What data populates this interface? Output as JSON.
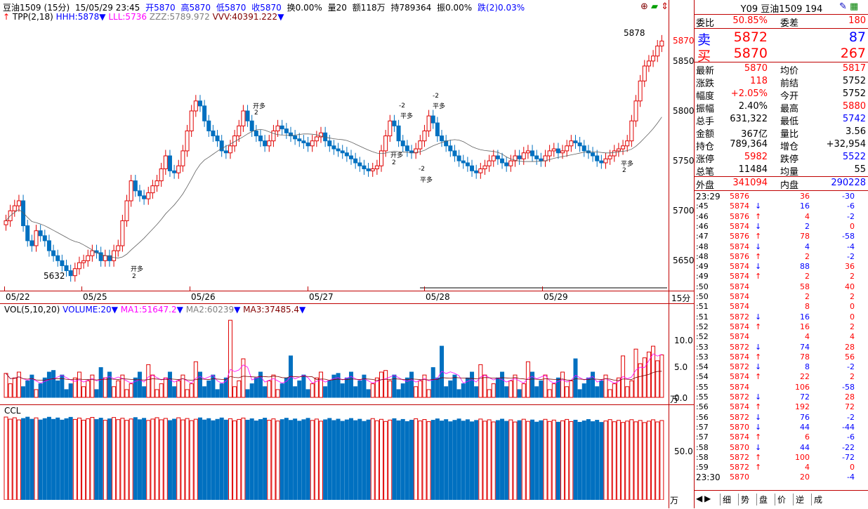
{
  "header": {
    "symbol": "豆油1509",
    "period": "(15分)",
    "datetime": "15/05/29 23:45",
    "open": "开5870",
    "high": "高5870",
    "low": "低5870",
    "close": "收5870",
    "turnover": "换0.00%",
    "volume": "量20",
    "amount": "额118万",
    "position": "持789364",
    "amplitude": "振0.00%",
    "change": "跌(2)0.03%"
  },
  "indicator": {
    "name": "TPP(2,18)",
    "hhh": "HHH:5878",
    "lll": "LLL:5736",
    "zzz": "ZZZ:5789.972",
    "vvv": "VVV:40391.222"
  },
  "vol_header": {
    "name": "VOL(5,10,20)",
    "volume": "VOLUME:20",
    "ma1": "MA1:51647.2",
    "ma2": "MA2:60239",
    "ma3": "MA3:37485.4"
  },
  "ccl_header": {
    "name": "CCL"
  },
  "price_axis": {
    "labels": [
      "5870",
      "5850",
      "5800",
      "5750",
      "5700",
      "5650"
    ],
    "period_label": "15分"
  },
  "vol_axis": {
    "labels": [
      "10.0",
      "5.0",
      "0.0"
    ],
    "unit": "万"
  },
  "ccl_axis": {
    "labels": [
      "50.0"
    ],
    "unit": "万"
  },
  "date_labels": [
    "05/22",
    "05/25",
    "05/26",
    "05/27",
    "05/28",
    "05/29"
  ],
  "annotations": {
    "high_mark": "5878",
    "low_mark": "5632",
    "signals": [
      "开多",
      "2",
      "开多",
      "2",
      "-2",
      "平多",
      "-2",
      "平多",
      "-2",
      "平多",
      "开多",
      "2",
      "平多",
      "2"
    ]
  },
  "chart_data": {
    "type": "candlestick",
    "y_range": [
      5620,
      5890
    ],
    "closes": [
      5690,
      5700,
      5705,
      5710,
      5685,
      5670,
      5665,
      5680,
      5675,
      5670,
      5660,
      5655,
      5650,
      5645,
      5640,
      5635,
      5642,
      5648,
      5650,
      5655,
      5660,
      5658,
      5650,
      5655,
      5650,
      5660,
      5665,
      5690,
      5710,
      5730,
      5720,
      5715,
      5712,
      5718,
      5725,
      5730,
      5742,
      5755,
      5740,
      5738,
      5745,
      5760,
      5780,
      5800,
      5810,
      5805,
      5790,
      5780,
      5775,
      5770,
      5760,
      5758,
      5765,
      5775,
      5785,
      5800,
      5790,
      5780,
      5775,
      5770,
      5765,
      5770,
      5780,
      5785,
      5782,
      5778,
      5775,
      5772,
      5770,
      5768,
      5765,
      5770,
      5774,
      5778,
      5770,
      5765,
      5762,
      5760,
      5758,
      5755,
      5752,
      5748,
      5745,
      5742,
      5740,
      5742,
      5745,
      5760,
      5775,
      5790,
      5785,
      5770,
      5765,
      5760,
      5758,
      5762,
      5770,
      5780,
      5795,
      5788,
      5775,
      5770,
      5765,
      5760,
      5755,
      5750,
      5748,
      5745,
      5740,
      5738,
      5742,
      5745,
      5750,
      5755,
      5752,
      5748,
      5745,
      5750,
      5755,
      5752,
      5758,
      5760,
      5755,
      5752,
      5750,
      5755,
      5760,
      5762,
      5758,
      5760,
      5765,
      5770,
      5768,
      5765,
      5760,
      5758,
      5755,
      5750,
      5748,
      5752,
      5755,
      5760,
      5762,
      5765,
      5770,
      5790,
      5810,
      5830,
      5845,
      5850,
      5855,
      5865,
      5870
    ]
  },
  "quote": {
    "header": {
      "code": "Y09",
      "name": "豆油1509",
      "num": "194"
    },
    "weibi": {
      "label": "委比",
      "value": "50.85%",
      "label2": "委差",
      "value2": "180"
    },
    "sell": {
      "label": "卖",
      "price": "5872",
      "qty": "87"
    },
    "buy": {
      "label": "买",
      "price": "5870",
      "qty": "267"
    },
    "rows": [
      {
        "l1": "最新",
        "v1": "5870",
        "c1": "#ff0000",
        "l2": "均价",
        "v2": "5817",
        "c2": "#ff0000"
      },
      {
        "l1": "涨跌",
        "v1": "118",
        "c1": "#ff0000",
        "l2": "前结",
        "v2": "5752",
        "c2": "#000000"
      },
      {
        "l1": "幅度",
        "v1": "+2.05%",
        "c1": "#ff0000",
        "l2": "今开",
        "v2": "5752",
        "c2": "#000000"
      },
      {
        "l1": "振幅",
        "v1": "2.40%",
        "c1": "#000000",
        "l2": "最高",
        "v2": "5880",
        "c2": "#ff0000"
      },
      {
        "l1": "总手",
        "v1": "631,322",
        "c1": "#000000",
        "l2": "最低",
        "v2": "5742",
        "c2": "#0000ff"
      },
      {
        "l1": "金额",
        "v1": "367亿",
        "c1": "#000000",
        "l2": "量比",
        "v2": "3.56",
        "c2": "#000000"
      },
      {
        "l1": "持仓",
        "v1": "789,364",
        "c1": "#000000",
        "l2": "增仓",
        "v2": "+32,954",
        "c2": "#000000"
      },
      {
        "l1": "涨停",
        "v1": "5982",
        "c1": "#ff0000",
        "l2": "跌停",
        "v2": "5522",
        "c2": "#0000ff"
      },
      {
        "l1": "总笔",
        "v1": "11484",
        "c1": "#000000",
        "l2": "均量",
        "v2": "55",
        "c2": "#000000"
      }
    ],
    "outer": {
      "label": "外盘",
      "value": "341094",
      "label2": "内盘",
      "value2": "290228"
    },
    "ticks": [
      {
        "t": "23:29",
        "p": "5876",
        "a": "",
        "v": "36",
        "d": "-30"
      },
      {
        "t": ":45",
        "p": "5874",
        "a": "↓",
        "v": "16",
        "d": "-6"
      },
      {
        "t": ":46",
        "p": "5876",
        "a": "↑",
        "v": "4",
        "d": "-2"
      },
      {
        "t": ":46",
        "p": "5874",
        "a": "↓",
        "v": "2",
        "d": "0"
      },
      {
        "t": ":47",
        "p": "5876",
        "a": "↑",
        "v": "78",
        "d": "-58"
      },
      {
        "t": ":48",
        "p": "5874",
        "a": "↓",
        "v": "4",
        "d": "-4"
      },
      {
        "t": ":48",
        "p": "5876",
        "a": "↑",
        "v": "2",
        "d": "-2"
      },
      {
        "t": ":49",
        "p": "5874",
        "a": "↓",
        "v": "88",
        "d": "36"
      },
      {
        "t": ":49",
        "p": "5874",
        "a": "↑",
        "v": "2",
        "d": "2"
      },
      {
        "t": ":50",
        "p": "5874",
        "a": "",
        "v": "58",
        "d": "40"
      },
      {
        "t": ":50",
        "p": "5874",
        "a": "",
        "v": "2",
        "d": "2"
      },
      {
        "t": ":51",
        "p": "5874",
        "a": "",
        "v": "8",
        "d": "0"
      },
      {
        "t": ":51",
        "p": "5872",
        "a": "↓",
        "v": "16",
        "d": "0"
      },
      {
        "t": ":52",
        "p": "5874",
        "a": "↑",
        "v": "16",
        "d": "2"
      },
      {
        "t": ":52",
        "p": "5874",
        "a": "",
        "v": "4",
        "d": "4"
      },
      {
        "t": ":53",
        "p": "5872",
        "a": "↓",
        "v": "74",
        "d": "28"
      },
      {
        "t": ":53",
        "p": "5874",
        "a": "↑",
        "v": "78",
        "d": "56"
      },
      {
        "t": ":54",
        "p": "5872",
        "a": "↓",
        "v": "8",
        "d": "-2"
      },
      {
        "t": ":54",
        "p": "5874",
        "a": "↑",
        "v": "22",
        "d": "2"
      },
      {
        "t": ":55",
        "p": "5874",
        "a": "",
        "v": "106",
        "d": "-58"
      },
      {
        "t": ":55",
        "p": "5872",
        "a": "↓",
        "v": "72",
        "d": "28"
      },
      {
        "t": ":56",
        "p": "5874",
        "a": "↑",
        "v": "192",
        "d": "72"
      },
      {
        "t": ":56",
        "p": "5872",
        "a": "↓",
        "v": "76",
        "d": "-2"
      },
      {
        "t": ":57",
        "p": "5870",
        "a": "↓",
        "v": "44",
        "d": "-44"
      },
      {
        "t": ":57",
        "p": "5874",
        "a": "↑",
        "v": "6",
        "d": "-6"
      },
      {
        "t": ":58",
        "p": "5870",
        "a": "↓",
        "v": "44",
        "d": "-22"
      },
      {
        "t": ":58",
        "p": "5872",
        "a": "↑",
        "v": "100",
        "d": "-72"
      },
      {
        "t": ":59",
        "p": "5872",
        "a": "↑",
        "v": "4",
        "d": "0"
      },
      {
        "t": "23:30",
        "p": "5870",
        "a": "",
        "v": "20",
        "d": "-4"
      }
    ],
    "tabs": [
      "细",
      "势",
      "盘",
      "价",
      "逆",
      "成"
    ]
  }
}
